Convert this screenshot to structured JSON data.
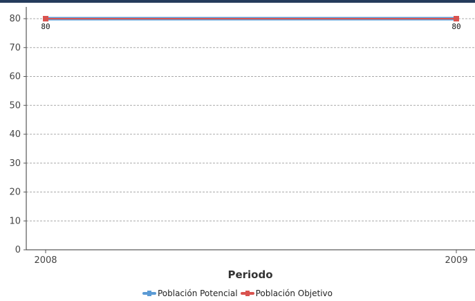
{
  "chart_data": {
    "type": "line",
    "title": "",
    "xlabel": "Periodo",
    "ylabel": "",
    "categories": [
      "2008",
      "2009"
    ],
    "ylim": [
      0,
      80
    ],
    "yticks": [
      0,
      10,
      20,
      30,
      40,
      50,
      60,
      70,
      80
    ],
    "grid": true,
    "legend_position": "bottom-center",
    "series": [
      {
        "name": "Población Potencial",
        "values": [
          80,
          80
        ],
        "color": "#5b9bd5"
      },
      {
        "name": "Población Objetivo",
        "values": [
          80,
          80
        ],
        "color": "#d9534f"
      }
    ],
    "data_labels": [
      "80",
      "80"
    ]
  }
}
